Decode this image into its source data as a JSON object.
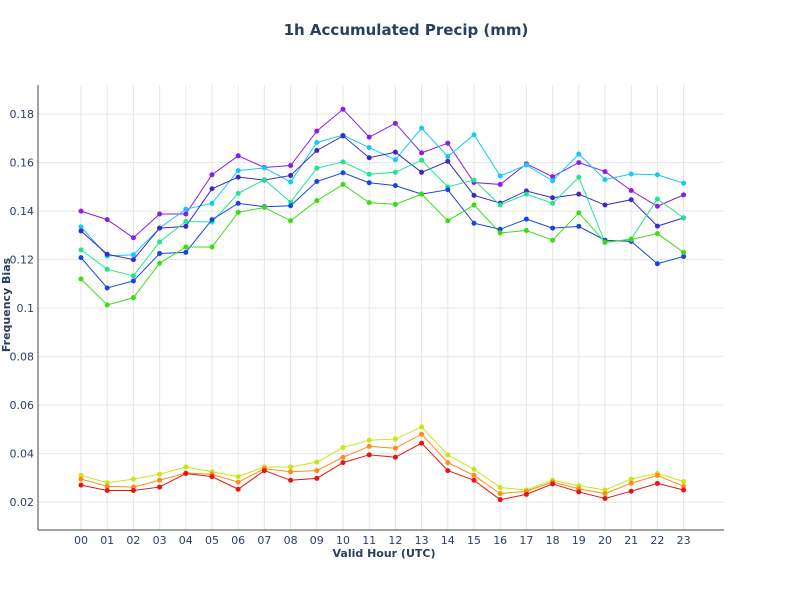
{
  "chart_data": {
    "type": "line",
    "title": "1h Accumulated Precip (mm)",
    "xlabel": "Valid Hour (UTC)",
    "ylabel": "Frequency Bias",
    "x": [
      "00",
      "01",
      "02",
      "03",
      "04",
      "05",
      "06",
      "07",
      "08",
      "09",
      "10",
      "11",
      "12",
      "13",
      "14",
      "15",
      "16",
      "17",
      "18",
      "19",
      "20",
      "21",
      "22",
      "23"
    ],
    "ylim": [
      0.0085,
      0.192
    ],
    "yticks": [
      "0.02",
      "0.04",
      "0.06",
      "0.08",
      "0.1",
      "0.12",
      "0.14",
      "0.16",
      "0.18"
    ],
    "grid": true,
    "legend": "none",
    "series": [
      {
        "color": "#8b1ee6",
        "values": [
          0.14,
          0.1365,
          0.129,
          0.1388,
          0.1388,
          0.155,
          0.1628,
          0.158,
          0.1588,
          0.173,
          0.182,
          0.1705,
          0.1762,
          0.164,
          0.168,
          0.1518,
          0.151,
          0.1595,
          0.1542,
          0.16,
          0.1563,
          0.1485,
          0.142,
          0.1467
        ]
      },
      {
        "color": "#14c8ff",
        "values": [
          0.1335,
          0.1215,
          0.122,
          0.133,
          0.1408,
          0.1432,
          0.1567,
          0.1578,
          0.152,
          0.1683,
          0.1713,
          0.1662,
          0.1612,
          0.1742,
          0.1625,
          0.1715,
          0.1545,
          0.159,
          0.1525,
          0.1635,
          0.153,
          0.1553,
          0.155,
          0.1515
        ]
      },
      {
        "color": "#3c28c8",
        "values": [
          0.1318,
          0.1222,
          0.12,
          0.133,
          0.1337,
          0.1492,
          0.154,
          0.1528,
          0.1547,
          0.165,
          0.171,
          0.162,
          0.1643,
          0.156,
          0.1605,
          0.1465,
          0.1433,
          0.1483,
          0.1455,
          0.147,
          0.1425,
          0.1447,
          0.1338,
          0.1372
        ]
      },
      {
        "color": "#1ee68c",
        "values": [
          0.124,
          0.116,
          0.1133,
          0.1273,
          0.1357,
          0.1355,
          0.1473,
          0.153,
          0.1437,
          0.1577,
          0.1603,
          0.1552,
          0.156,
          0.161,
          0.15,
          0.1528,
          0.1425,
          0.147,
          0.1432,
          0.154,
          0.127,
          0.1285,
          0.145,
          0.1372
        ]
      },
      {
        "color": "#1446e6",
        "values": [
          0.1208,
          0.1083,
          0.1112,
          0.1225,
          0.123,
          0.1365,
          0.1432,
          0.1418,
          0.1422,
          0.1522,
          0.1558,
          0.1517,
          0.1505,
          0.147,
          0.1488,
          0.135,
          0.1325,
          0.1367,
          0.133,
          0.1337,
          0.128,
          0.1275,
          0.1183,
          0.1213
        ]
      },
      {
        "color": "#3cdc14",
        "values": [
          0.112,
          0.1013,
          0.1043,
          0.1185,
          0.1252,
          0.1252,
          0.1395,
          0.1415,
          0.136,
          0.1443,
          0.151,
          0.1435,
          0.1428,
          0.147,
          0.136,
          0.1425,
          0.131,
          0.132,
          0.128,
          0.1393,
          0.1272,
          0.1283,
          0.1307,
          0.123
        ]
      },
      {
        "color": "#c8e614",
        "values": [
          0.031,
          0.028,
          0.0295,
          0.0315,
          0.0345,
          0.0325,
          0.0305,
          0.0345,
          0.0345,
          0.0365,
          0.0425,
          0.0455,
          0.046,
          0.051,
          0.0395,
          0.0335,
          0.026,
          0.025,
          0.029,
          0.0268,
          0.025,
          0.0295,
          0.0318,
          0.0285
        ]
      },
      {
        "color": "#ff8c14",
        "values": [
          0.0295,
          0.0265,
          0.0262,
          0.029,
          0.032,
          0.0315,
          0.0282,
          0.0338,
          0.0325,
          0.033,
          0.0385,
          0.043,
          0.0422,
          0.048,
          0.0363,
          0.031,
          0.0235,
          0.0245,
          0.0283,
          0.0255,
          0.0235,
          0.0278,
          0.031,
          0.0265
        ]
      },
      {
        "color": "#e61414",
        "values": [
          0.027,
          0.0248,
          0.0248,
          0.0262,
          0.0318,
          0.0305,
          0.0253,
          0.033,
          0.029,
          0.0298,
          0.0363,
          0.0395,
          0.0385,
          0.0443,
          0.033,
          0.029,
          0.021,
          0.0232,
          0.0275,
          0.0242,
          0.0215,
          0.0245,
          0.0277,
          0.025
        ]
      }
    ]
  }
}
